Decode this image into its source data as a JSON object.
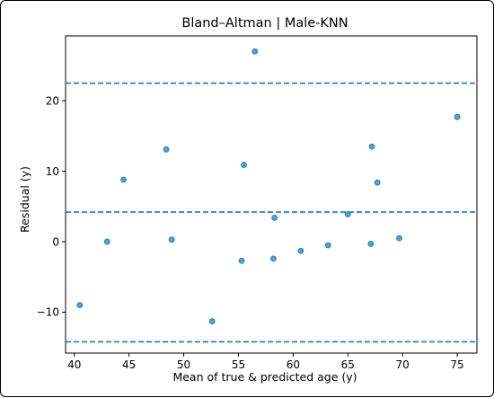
{
  "chart_data": {
    "type": "scatter",
    "title": "Bland–Altman | Male-KNN",
    "xlabel": "Mean of true & predicted age (y)",
    "ylabel": "Residual (y)",
    "xlim": [
      39.2,
      76.8
    ],
    "ylim": [
      -15.8,
      29.2
    ],
    "xticks": [
      40,
      45,
      50,
      55,
      60,
      65,
      70,
      75
    ],
    "yticks": [
      -10,
      0,
      10,
      20
    ],
    "xtick_labels": [
      "40",
      "45",
      "50",
      "55",
      "60",
      "65",
      "70",
      "75"
    ],
    "ytick_labels": [
      "−10",
      "0",
      "10",
      "20"
    ],
    "grid": false,
    "reference_lines": [
      22.5,
      4.2,
      -14.2
    ],
    "colors": {
      "points": "#1f77b4",
      "lines": "#1f77b4"
    },
    "points": [
      {
        "x": 40.5,
        "y": -9.0
      },
      {
        "x": 43.0,
        "y": 0.0
      },
      {
        "x": 44.5,
        "y": 8.8
      },
      {
        "x": 48.4,
        "y": 13.1
      },
      {
        "x": 48.9,
        "y": 0.3
      },
      {
        "x": 52.6,
        "y": -11.3
      },
      {
        "x": 55.3,
        "y": -2.7
      },
      {
        "x": 55.5,
        "y": 10.9
      },
      {
        "x": 56.5,
        "y": 27.0
      },
      {
        "x": 58.2,
        "y": -2.4
      },
      {
        "x": 58.3,
        "y": 3.4
      },
      {
        "x": 60.7,
        "y": -1.3
      },
      {
        "x": 63.2,
        "y": -0.5
      },
      {
        "x": 65.0,
        "y": 3.9
      },
      {
        "x": 67.1,
        "y": -0.3
      },
      {
        "x": 67.2,
        "y": 13.5
      },
      {
        "x": 67.7,
        "y": 8.4
      },
      {
        "x": 69.7,
        "y": 0.5
      },
      {
        "x": 75.0,
        "y": 17.7
      }
    ]
  }
}
